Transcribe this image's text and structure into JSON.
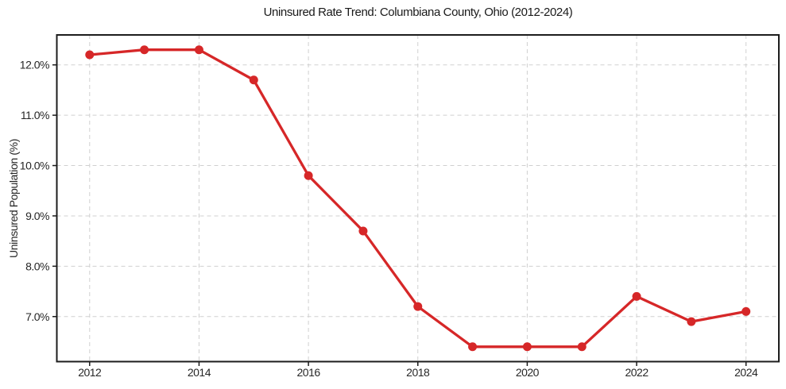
{
  "chart_data": {
    "type": "line",
    "title": "Uninsured Rate Trend: Columbiana County, Ohio (2012-2024)",
    "xlabel": "",
    "ylabel": "Uninsured Population (%)",
    "x": [
      2012,
      2013,
      2014,
      2015,
      2016,
      2017,
      2018,
      2019,
      2020,
      2021,
      2022,
      2023,
      2024
    ],
    "series": [
      {
        "name": "Uninsured rate",
        "values": [
          12.2,
          12.3,
          12.3,
          11.7,
          9.8,
          8.7,
          7.2,
          6.4,
          6.4,
          6.4,
          7.4,
          6.9,
          7.1
        ]
      }
    ],
    "x_tick_values": [
      2012,
      2014,
      2016,
      2018,
      2020,
      2022,
      2024
    ],
    "x_tick_labels": [
      "2012",
      "2014",
      "2016",
      "2018",
      "2020",
      "2022",
      "2024"
    ],
    "y_tick_values": [
      12.0,
      11.0,
      10.0,
      9.0,
      8.0,
      7.0
    ],
    "y_tick_labels": [
      "12.0%",
      "11.0%",
      "10.0%",
      "9.0%",
      "8.0%",
      "7.0%"
    ],
    "xlim": [
      2011.4,
      2024.6
    ],
    "ylim": [
      6.105,
      12.595
    ],
    "grid": true,
    "legend_position": "none",
    "line_color": "#d62728",
    "marker": "circle"
  }
}
